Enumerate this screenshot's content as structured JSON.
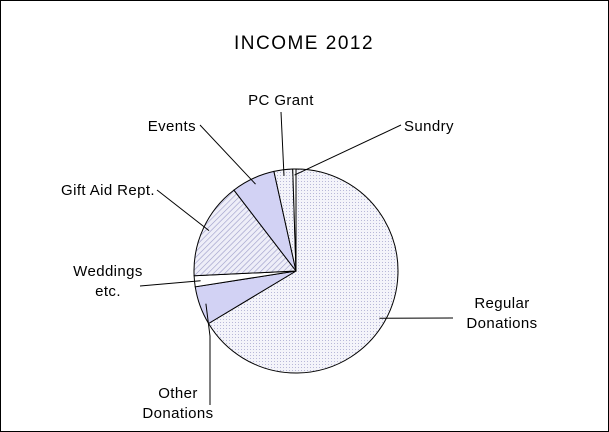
{
  "chart_data": {
    "type": "pie",
    "title": "INCOME 2012",
    "slices": [
      {
        "label": "Regular Donations",
        "lines": [
          "Regular",
          "Donations"
        ],
        "value": 65.0,
        "color": "#f4f4fa",
        "pattern": "dots"
      },
      {
        "label": "Other Donations",
        "lines": [
          "Other",
          "Donations"
        ],
        "value": 6.0,
        "color": "#d2d2f4",
        "pattern": "solid"
      },
      {
        "label": "Weddings etc.",
        "lines": [
          "Weddings",
          "etc."
        ],
        "value": 1.7,
        "color": "#ffffff",
        "pattern": "none"
      },
      {
        "label": "Gift Aid Rept.",
        "lines": [
          "Gift Aid Rept."
        ],
        "value": 15.0,
        "color": "#eaeaf6",
        "pattern": "hatch"
      },
      {
        "label": "Events",
        "lines": [
          "Events"
        ],
        "value": 6.8,
        "color": "#d2d2f4",
        "pattern": "solid"
      },
      {
        "label": "PC Grant",
        "lines": [
          "PC Grant"
        ],
        "value": 2.9,
        "color": "#f2f2fa",
        "pattern": "dots"
      },
      {
        "label": "Sundry",
        "lines": [
          "Sundry"
        ],
        "value": 0.5,
        "color": "#ffffff",
        "pattern": "none"
      }
    ],
    "start_angle_deg": 90,
    "direction": "clockwise",
    "legend": "none"
  }
}
